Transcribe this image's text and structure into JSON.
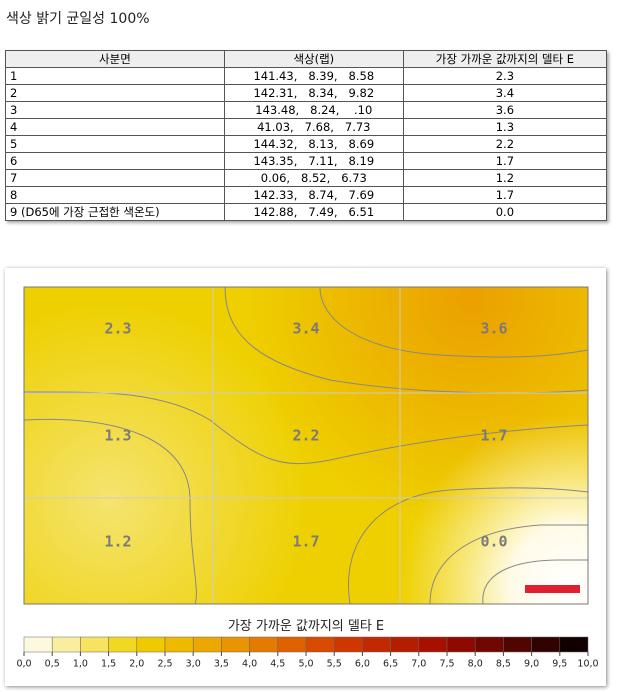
{
  "title": "색상 밝기 균일성 100%",
  "table": {
    "headers": [
      "사분면",
      "색상(랩)",
      "가장 가까운 값까지의 델타 E"
    ],
    "rows": [
      [
        "1",
        "141.43,   8.39,   8.58",
        "2.3"
      ],
      [
        "2",
        "142.31,   8.34,   9.82",
        "3.4"
      ],
      [
        "3",
        "143.48,   8.24,    .10",
        "3.6"
      ],
      [
        "4",
        "41.03,   7.68,   7.73",
        "1.3"
      ],
      [
        "5",
        "144.32,   8.13,   8.69",
        "2.2"
      ],
      [
        "6",
        "143.35,   7.11,   8.19",
        "1.7"
      ],
      [
        "7",
        "0.06,   8.52,   6.73",
        "1.2"
      ],
      [
        "8",
        "142.33,   8.74,   7.69",
        "1.7"
      ],
      [
        "9 (D65에 가장 근접한 색온도)",
        "142.88,   7.49,   6.51",
        "0.0"
      ]
    ]
  },
  "heatmap": {
    "cells": [
      [
        "2.3",
        "3.4",
        "3.6"
      ],
      [
        "1.3",
        "2.2",
        "1.7"
      ],
      [
        "1.2",
        "1.7",
        "0.0"
      ]
    ],
    "legend_title": "가장 가까운 값까지의 델타 E",
    "legend_ticks": [
      "0,0",
      "0,5",
      "1,0",
      "1,5",
      "2,0",
      "2,5",
      "3,0",
      "3,5",
      "4,0",
      "4,5",
      "5,0",
      "5,5",
      "6,0",
      "6,5",
      "7,0",
      "7,5",
      "8,0",
      "8,5",
      "9,0",
      "9,5",
      "10,0"
    ]
  }
}
